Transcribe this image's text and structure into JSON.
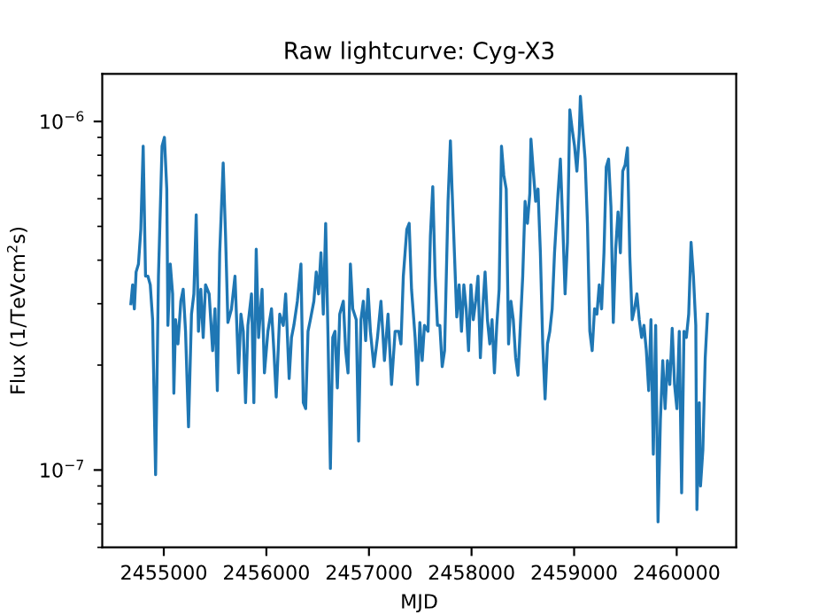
{
  "chart_data": {
    "type": "line",
    "title": "Raw lightcurve: Cyg-X3",
    "xlabel": "MJD",
    "ylabel": "Flux (1/TeVcm$^{2}$s)",
    "log": "y",
    "grid": false,
    "legend": false,
    "marker": "none",
    "line_style": "solid",
    "xlim": [
      2454400,
      2460580
    ],
    "xticks": [
      2455000,
      2456000,
      2457000,
      2458000,
      2459000,
      2460000
    ],
    "ylim": [
      6e-08,
      1.37e-06
    ],
    "yticks": [
      {
        "value": 1e-07,
        "label": "10$^{−7}$"
      },
      {
        "value": 1e-06,
        "label": "10$^{−6}$"
      }
    ],
    "series": [
      {
        "color": "#1f77b4",
        "x": [
          2454679,
          2454696,
          2454713,
          2454730,
          2454753,
          2454776,
          2454799,
          2454822,
          2454845,
          2454868,
          2454891,
          2454920,
          2454948,
          2454983,
          2455006,
          2455029,
          2455040,
          2455063,
          2455086,
          2455098,
          2455115,
          2455138,
          2455166,
          2455189,
          2455212,
          2455241,
          2455270,
          2455293,
          2455316,
          2455338,
          2455361,
          2455384,
          2455407,
          2455442,
          2455476,
          2455499,
          2455522,
          2455545,
          2455579,
          2455602,
          2455625,
          2455660,
          2455694,
          2455729,
          2455752,
          2455775,
          2455797,
          2455820,
          2455855,
          2455878,
          2455901,
          2455924,
          2455958,
          2455981,
          2456015,
          2456050,
          2456073,
          2456096,
          2456130,
          2456165,
          2456188,
          2456222,
          2456245,
          2456268,
          2456302,
          2456337,
          2456360,
          2456383,
          2456406,
          2456429,
          2456463,
          2456486,
          2456509,
          2456532,
          2456555,
          2456578,
          2456601,
          2456624,
          2456647,
          2456669,
          2456692,
          2456715,
          2456750,
          2456773,
          2456796,
          2456819,
          2456842,
          2456876,
          2456899,
          2456922,
          2456945,
          2456968,
          2456991,
          2457014,
          2457048,
          2457083,
          2457117,
          2457151,
          2457186,
          2457220,
          2457255,
          2457289,
          2457312,
          2457335,
          2457369,
          2457392,
          2457415,
          2457450,
          2457473,
          2457496,
          2457519,
          2457541,
          2457576,
          2457599,
          2457622,
          2457645,
          2457668,
          2457691,
          2457714,
          2457737,
          2457771,
          2457794,
          2457810,
          2457833,
          2457856,
          2457879,
          2457902,
          2457925,
          2457948,
          2457971,
          2457994,
          2458017,
          2458040,
          2458063,
          2458086,
          2458109,
          2458132,
          2458155,
          2458178,
          2458200,
          2458223,
          2458246,
          2458269,
          2458292,
          2458315,
          2458338,
          2458361,
          2458384,
          2458407,
          2458430,
          2458453,
          2458476,
          2458499,
          2458522,
          2458545,
          2458568,
          2458579,
          2458602,
          2458625,
          2458648,
          2458671,
          2458694,
          2458717,
          2458740,
          2458763,
          2458786,
          2458809,
          2458843,
          2458866,
          2458889,
          2458912,
          2458935,
          2458958,
          2458981,
          2459004,
          2459027,
          2459050,
          2459061,
          2459084,
          2459107,
          2459130,
          2459153,
          2459176,
          2459199,
          2459222,
          2459245,
          2459268,
          2459291,
          2459313,
          2459336,
          2459359,
          2459382,
          2459405,
          2459428,
          2459451,
          2459474,
          2459497,
          2459520,
          2459543,
          2459566,
          2459589,
          2459612,
          2459635,
          2459658,
          2459681,
          2459704,
          2459727,
          2459749,
          2459772,
          2459795,
          2459818,
          2459841,
          2459864,
          2459887,
          2459910,
          2459933,
          2459956,
          2459979,
          2460002,
          2460025,
          2460048,
          2460071,
          2460094,
          2460117,
          2460140,
          2460163,
          2460186,
          2460197,
          2460220,
          2460232,
          2460255,
          2460278,
          2460300
        ],
        "values": [
          3e-07,
          3.4e-07,
          2.9e-07,
          3.7e-07,
          3.9e-07,
          4.9e-07,
          8.5e-07,
          3.6e-07,
          3.6e-07,
          3.4e-07,
          2.7e-07,
          9.7e-08,
          3.6e-07,
          8.5e-07,
          9e-07,
          6.4e-07,
          2.6e-07,
          3.9e-07,
          3.2e-07,
          1.66e-07,
          2.7e-07,
          2.3e-07,
          3.05e-07,
          3.3e-07,
          2.5e-07,
          1.33e-07,
          2.8e-07,
          3.2e-07,
          5.4e-07,
          2.5e-07,
          3.3e-07,
          2.4e-07,
          3.4e-07,
          3.2e-07,
          2.2e-07,
          2.9e-07,
          1.69e-07,
          4.2e-07,
          7.6e-07,
          4.7e-07,
          2.65e-07,
          2.9e-07,
          3.6e-07,
          1.9e-07,
          2.8e-07,
          2.5e-07,
          1.56e-07,
          2.6e-07,
          3.2e-07,
          1.56e-07,
          4.3e-07,
          2.4e-07,
          3.3e-07,
          1.9e-07,
          2.5e-07,
          2.9e-07,
          2.2e-07,
          1.62e-07,
          2.8e-07,
          2.6e-07,
          3.2e-07,
          1.83e-07,
          2.4e-07,
          2.6e-07,
          3.05e-07,
          3.9e-07,
          1.56e-07,
          1.5e-07,
          2.5e-07,
          2.7e-07,
          3.05e-07,
          3.7e-07,
          3.2e-07,
          4.2e-07,
          2.8e-07,
          5.1e-07,
          2.4e-07,
          1.01e-07,
          2.4e-07,
          2.5e-07,
          1.72e-07,
          2.8e-07,
          3.05e-07,
          2.2e-07,
          1.9e-07,
          3.9e-07,
          2.9e-07,
          2.7e-07,
          1.21e-07,
          2.7e-07,
          3.05e-07,
          2.35e-07,
          3.3e-07,
          2.5e-07,
          1.98e-07,
          2.4e-07,
          3.05e-07,
          2.06e-07,
          2.8e-07,
          1.76e-07,
          2.5e-07,
          2.5e-07,
          2.3e-07,
          3.6e-07,
          4.9e-07,
          5.1e-07,
          3.3e-07,
          2.4e-07,
          1.76e-07,
          2.65e-07,
          2.06e-07,
          2.6e-07,
          2.5e-07,
          4.7e-07,
          6.5e-07,
          3.6e-07,
          2.6e-07,
          2.6e-07,
          1.98e-07,
          2.2e-07,
          5.9e-07,
          8.8e-07,
          6.4e-07,
          4.2e-07,
          2.75e-07,
          3.4e-07,
          2.5e-07,
          3.4e-07,
          2.9e-07,
          2.2e-07,
          3.4e-07,
          2.7e-07,
          3.05e-07,
          3.6e-07,
          2.1e-07,
          2.9e-07,
          3.7e-07,
          2.7e-07,
          2.3e-07,
          2.7e-07,
          1.9e-07,
          2.6e-07,
          3.3e-07,
          8.5e-07,
          7e-07,
          6.4e-07,
          2.3e-07,
          3.05e-07,
          2.7e-07,
          2.1e-07,
          1.87e-07,
          2.6e-07,
          3.6e-07,
          5.9e-07,
          5.1e-07,
          6.2e-07,
          8.9e-07,
          7.2e-07,
          5.9e-07,
          6.4e-07,
          4.2e-07,
          2.3e-07,
          1.6e-07,
          2.3e-07,
          2.5e-07,
          2.9e-07,
          4.2e-07,
          6.2e-07,
          7.8e-07,
          5.1e-07,
          3.2e-07,
          4.5e-07,
          1.08e-06,
          9.5e-07,
          8.5e-07,
          7.2e-07,
          9.2e-07,
          1.18e-06,
          9.5e-07,
          7.8e-07,
          5.1e-07,
          2.5e-07,
          2.2e-07,
          2.9e-07,
          2.8e-07,
          3.4e-07,
          2.9e-07,
          4.2e-07,
          7.4e-07,
          7.8e-07,
          5.7e-07,
          2.65e-07,
          4.3e-07,
          5.5e-07,
          4.2e-07,
          7.2e-07,
          7.5e-07,
          8.4e-07,
          4.1e-07,
          2.7e-07,
          2.9e-07,
          3.2e-07,
          2.7e-07,
          2.4e-07,
          2.6e-07,
          2.2e-07,
          1.69e-07,
          2.7e-07,
          1.11e-07,
          2.6e-07,
          7.1e-08,
          1.39e-07,
          2.06e-07,
          1.5e-07,
          2.06e-07,
          1.76e-07,
          2.55e-07,
          1.76e-07,
          1.5e-07,
          2.5e-07,
          8.6e-08,
          2.5e-07,
          2.4e-07,
          2.8e-07,
          4.5e-07,
          3.6e-07,
          2.6e-07,
          7.7e-08,
          1.56e-07,
          9e-08,
          1.14e-07,
          2.1e-07,
          2.8e-07
        ]
      }
    ]
  }
}
